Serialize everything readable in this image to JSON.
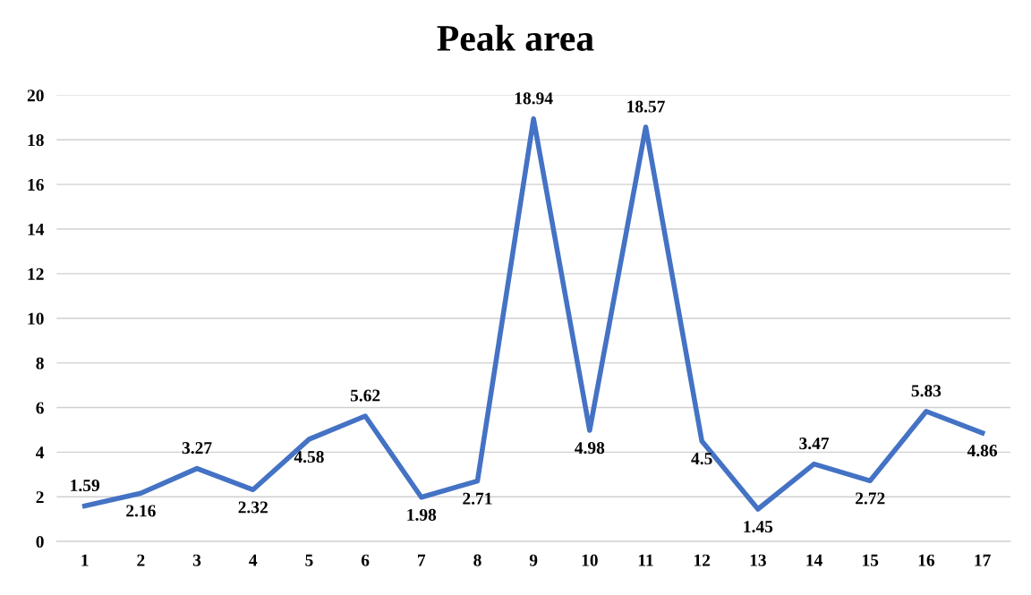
{
  "chart_data": {
    "type": "line",
    "title": "Peak area",
    "categories": [
      "1",
      "2",
      "3",
      "4",
      "5",
      "6",
      "7",
      "8",
      "9",
      "10",
      "11",
      "12",
      "13",
      "14",
      "15",
      "16",
      "17"
    ],
    "series": [
      {
        "color": "#4472c4",
        "values": [
          1.59,
          2.16,
          3.27,
          2.32,
          4.58,
          5.62,
          1.98,
          2.71,
          18.94,
          4.98,
          18.57,
          4.5,
          1.45,
          3.47,
          2.72,
          5.83,
          4.86
        ]
      }
    ],
    "ylim": [
      0,
      20
    ],
    "yticks": [
      0,
      2,
      4,
      6,
      8,
      10,
      12,
      14,
      16,
      18,
      20
    ],
    "grid": "y",
    "data_labels": true,
    "marker": "none",
    "line_style": "solid"
  }
}
